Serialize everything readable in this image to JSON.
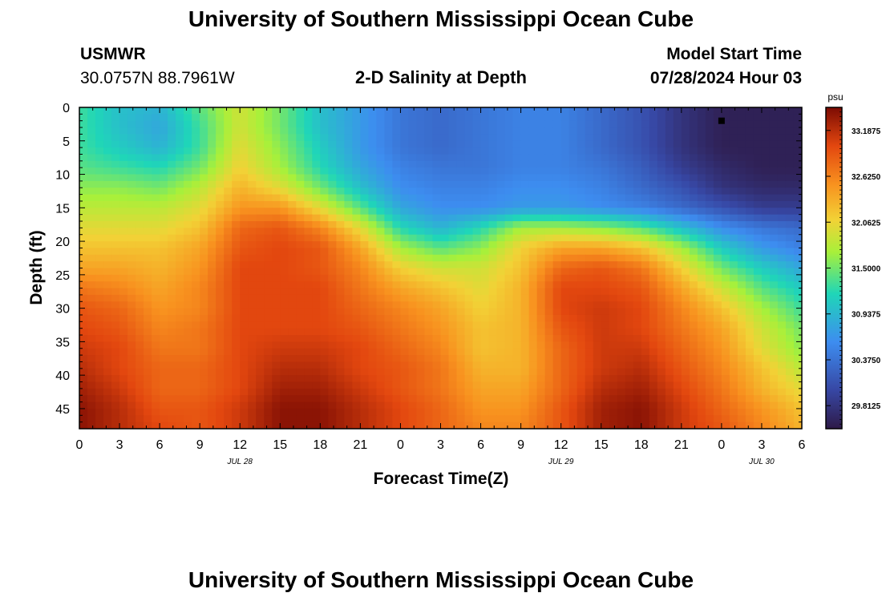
{
  "page": {
    "title_top": "University of Southern Mississippi Ocean Cube",
    "title_bottom": "University of Southern Mississippi Ocean Cube",
    "station": "USMWR",
    "coords": "30.0757N  88.7961W",
    "subtitle": "2-D Salinity at Depth",
    "model_start_label": "Model Start Time",
    "model_start_value": "07/28/2024 Hour 03"
  },
  "chart_data": {
    "type": "heatmap",
    "title": "2-D Salinity at Depth",
    "xlabel": "Forecast Time(Z)",
    "ylabel": "Depth (ft)",
    "x_tick_labels": [
      "0",
      "3",
      "6",
      "9",
      "12",
      "15",
      "18",
      "21",
      "0",
      "3",
      "6",
      "9",
      "12",
      "15",
      "18",
      "21",
      "0",
      "3",
      "6"
    ],
    "x_range_hours": [
      0,
      54
    ],
    "date_labels": [
      {
        "hour": 12,
        "label": "JUL 28"
      },
      {
        "hour": 36,
        "label": "JUL 29"
      },
      {
        "hour": 51,
        "label": "JUL 30"
      }
    ],
    "y_tick_labels": [
      "0",
      "5",
      "10",
      "15",
      "20",
      "25",
      "30",
      "35",
      "40",
      "45"
    ],
    "y_range_ft": [
      0,
      48
    ],
    "colorbar": {
      "unit": "psu",
      "range": [
        29.53,
        33.47
      ],
      "tick_labels": [
        "33.1875",
        "32.6250",
        "32.0625",
        "31.5000",
        "30.9375",
        "30.3750",
        "29.8125"
      ],
      "tick_values": [
        33.1875,
        32.625,
        32.0625,
        31.5,
        30.9375,
        30.375,
        29.8125
      ]
    },
    "marker": {
      "hour": 48,
      "depth_ft": 2
    },
    "hours": [
      0,
      3,
      6,
      9,
      12,
      15,
      18,
      21,
      24,
      27,
      30,
      33,
      36,
      39,
      42,
      45,
      48,
      51,
      54
    ],
    "depths_ft": [
      0,
      3,
      6,
      9,
      12,
      15,
      18,
      21,
      24,
      27,
      30,
      33,
      36,
      39,
      42,
      45,
      48
    ],
    "salinity_psu": [
      [
        31.3,
        31.0,
        30.9,
        31.4,
        31.9,
        31.5,
        31.0,
        30.7,
        30.4,
        30.3,
        30.4,
        30.5,
        30.5,
        30.3,
        30.1,
        29.8,
        29.6,
        29.6,
        29.6
      ],
      [
        31.3,
        31.0,
        30.8,
        31.3,
        31.9,
        31.5,
        31.0,
        30.7,
        30.4,
        30.3,
        30.4,
        30.5,
        30.5,
        30.3,
        30.1,
        29.8,
        29.6,
        29.6,
        29.6
      ],
      [
        31.3,
        31.1,
        30.9,
        31.3,
        32.0,
        31.6,
        31.1,
        30.7,
        30.4,
        30.3,
        30.4,
        30.5,
        30.5,
        30.3,
        30.1,
        29.8,
        29.6,
        29.6,
        29.6
      ],
      [
        31.4,
        31.3,
        31.2,
        31.5,
        32.1,
        31.7,
        31.2,
        30.8,
        30.5,
        30.4,
        30.4,
        30.5,
        30.5,
        30.4,
        30.2,
        29.9,
        29.7,
        29.6,
        29.6
      ],
      [
        31.6,
        31.6,
        31.5,
        31.8,
        32.3,
        32.0,
        31.5,
        31.0,
        30.6,
        30.5,
        30.5,
        30.6,
        30.6,
        30.5,
        30.3,
        30.1,
        29.8,
        29.7,
        29.7
      ],
      [
        31.8,
        31.8,
        31.8,
        32.0,
        32.5,
        32.5,
        32.0,
        31.4,
        30.8,
        30.6,
        30.6,
        30.7,
        30.7,
        30.6,
        30.5,
        30.3,
        30.1,
        29.9,
        29.9
      ],
      [
        32.0,
        32.0,
        32.0,
        32.2,
        32.8,
        32.9,
        32.6,
        32.0,
        31.2,
        30.9,
        31.2,
        31.7,
        31.7,
        31.6,
        31.4,
        31.0,
        30.6,
        30.4,
        30.3
      ],
      [
        32.2,
        32.2,
        32.2,
        32.4,
        32.9,
        33.0,
        32.9,
        32.4,
        31.7,
        31.4,
        31.6,
        32.1,
        32.4,
        32.4,
        32.2,
        31.7,
        31.1,
        30.7,
        30.5
      ],
      [
        32.4,
        32.4,
        32.3,
        32.5,
        33.0,
        33.0,
        32.9,
        32.6,
        32.1,
        31.9,
        31.9,
        32.2,
        32.8,
        32.9,
        32.7,
        32.1,
        31.5,
        31.1,
        30.8
      ],
      [
        32.7,
        32.6,
        32.4,
        32.6,
        33.0,
        33.0,
        33.0,
        32.7,
        32.4,
        32.2,
        32.0,
        32.3,
        33.0,
        33.0,
        32.9,
        32.4,
        31.9,
        31.4,
        31.1
      ],
      [
        32.9,
        32.8,
        32.5,
        32.6,
        33.0,
        33.0,
        33.0,
        32.8,
        32.6,
        32.4,
        32.1,
        32.3,
        33.0,
        33.1,
        33.0,
        32.6,
        32.2,
        31.7,
        31.3
      ],
      [
        33.0,
        32.9,
        32.6,
        32.7,
        33.0,
        33.0,
        33.0,
        32.9,
        32.7,
        32.5,
        32.2,
        32.3,
        32.9,
        33.1,
        33.0,
        32.7,
        32.4,
        31.9,
        31.5
      ],
      [
        33.1,
        33.0,
        32.7,
        32.7,
        33.0,
        33.1,
        33.1,
        33.0,
        32.8,
        32.6,
        32.2,
        32.3,
        32.8,
        33.1,
        33.1,
        32.8,
        32.5,
        32.0,
        31.6
      ],
      [
        33.2,
        33.0,
        32.8,
        32.8,
        33.0,
        33.2,
        33.2,
        33.0,
        32.9,
        32.7,
        32.3,
        32.3,
        32.8,
        33.1,
        33.2,
        32.9,
        32.6,
        32.2,
        31.8
      ],
      [
        33.3,
        33.1,
        32.8,
        32.8,
        33.0,
        33.3,
        33.3,
        33.1,
        32.9,
        32.7,
        32.4,
        32.4,
        32.8,
        33.2,
        33.3,
        33.0,
        32.7,
        32.3,
        32.0
      ],
      [
        33.4,
        33.2,
        32.9,
        32.9,
        33.1,
        33.4,
        33.4,
        33.2,
        33.0,
        32.8,
        32.5,
        32.5,
        32.9,
        33.3,
        33.4,
        33.1,
        32.8,
        32.5,
        32.2
      ],
      [
        33.4,
        33.2,
        33.0,
        32.9,
        33.1,
        33.4,
        33.4,
        33.2,
        33.0,
        32.8,
        32.6,
        32.6,
        32.9,
        33.3,
        33.4,
        33.1,
        32.9,
        32.6,
        32.3
      ]
    ]
  }
}
